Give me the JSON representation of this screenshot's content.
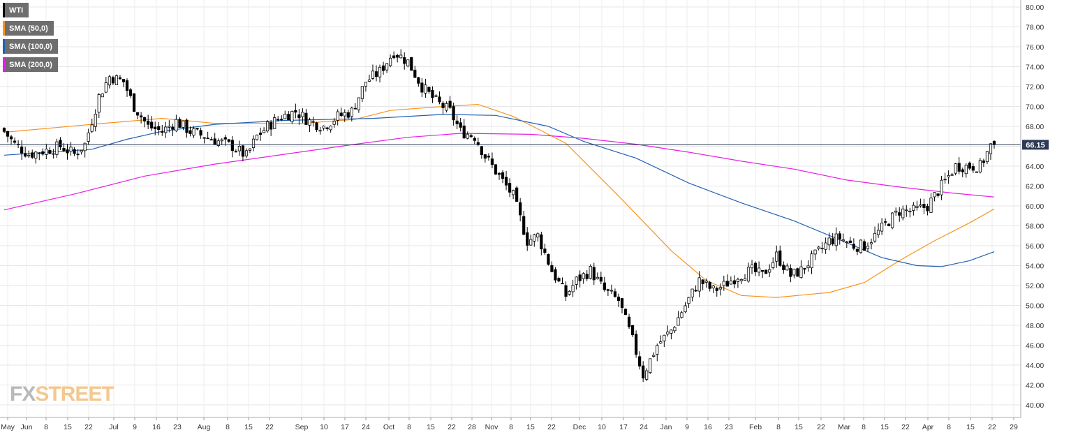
{
  "legend": [
    {
      "label": "WTI",
      "color": "#000000"
    },
    {
      "label": "SMA (50,0)",
      "color": "#f7931e"
    },
    {
      "label": "SMA (100,0)",
      "color": "#2261b3"
    },
    {
      "label": "SMA (200,0)",
      "color": "#e61ee6"
    }
  ],
  "brand": {
    "fx": "FX",
    "street": "STREET"
  },
  "chart_data": {
    "type": "candlestick",
    "title": "WTI",
    "xlabel": "",
    "ylabel": "",
    "ylim": [
      39,
      81
    ],
    "y_ticks": [
      "40.00",
      "42.00",
      "44.00",
      "46.00",
      "48.00",
      "50.00",
      "52.00",
      "54.00",
      "56.00",
      "58.00",
      "60.00",
      "62.00",
      "64.00",
      "66.00",
      "68.00",
      "70.00",
      "72.00",
      "74.00",
      "76.00",
      "78.00",
      "80.00"
    ],
    "x_ticks": [
      "May",
      "Jun",
      "8",
      "15",
      "22",
      "Jul",
      "9",
      "16",
      "23",
      "Aug",
      "8",
      "15",
      "22",
      "Sep",
      "10",
      "17",
      "24",
      "Oct",
      "8",
      "15",
      "22",
      "28",
      "Nov",
      "8",
      "15",
      "22",
      "Dec",
      "10",
      "17",
      "24",
      "Jan",
      "9",
      "16",
      "23",
      "Feb",
      "8",
      "15",
      "22",
      "Mar",
      "8",
      "15",
      "22",
      "Apr",
      "8",
      "15",
      "22",
      "29"
    ],
    "last_price": "66.15",
    "price_path": [
      [
        0,
        67.5
      ],
      [
        3,
        66.2
      ],
      [
        7,
        65.2
      ],
      [
        12,
        65.6
      ],
      [
        16,
        66.0
      ],
      [
        20,
        65.2
      ],
      [
        23,
        66.2
      ],
      [
        27,
        71.0
      ],
      [
        30,
        73.0
      ],
      [
        34,
        72.5
      ],
      [
        37,
        70.0
      ],
      [
        41,
        68.0
      ],
      [
        45,
        67.5
      ],
      [
        49,
        68.5
      ],
      [
        53,
        67.5
      ],
      [
        57,
        67.0
      ],
      [
        61,
        66.5
      ],
      [
        65,
        66.0
      ],
      [
        69,
        65.0
      ],
      [
        72,
        67.0
      ],
      [
        75,
        68.0
      ],
      [
        79,
        69.0
      ],
      [
        83,
        69.5
      ],
      [
        87,
        68.5
      ],
      [
        91,
        68.0
      ],
      [
        95,
        69.0
      ],
      [
        99,
        69.5
      ],
      [
        103,
        72.5
      ],
      [
        107,
        73.5
      ],
      [
        111,
        75.5
      ],
      [
        115,
        74.5
      ],
      [
        119,
        72.0
      ],
      [
        123,
        70.5
      ],
      [
        127,
        69.5
      ],
      [
        130,
        67.5
      ],
      [
        134,
        67.0
      ],
      [
        137,
        65.0
      ],
      [
        141,
        63.0
      ],
      [
        145,
        61.0
      ],
      [
        149,
        56.5
      ],
      [
        152,
        57.0
      ],
      [
        156,
        53.5
      ],
      [
        160,
        51.0
      ],
      [
        163,
        52.5
      ],
      [
        167,
        53.5
      ],
      [
        171,
        51.5
      ],
      [
        175,
        50.5
      ],
      [
        179,
        46.5
      ],
      [
        182,
        43.0
      ],
      [
        186,
        46.0
      ],
      [
        190,
        47.5
      ],
      [
        194,
        50.0
      ],
      [
        198,
        52.5
      ],
      [
        202,
        51.5
      ],
      [
        205,
        52.0
      ],
      [
        209,
        53.0
      ],
      [
        213,
        53.5
      ],
      [
        216,
        53.0
      ],
      [
        220,
        55.0
      ],
      [
        224,
        53.0
      ],
      [
        227,
        53.5
      ],
      [
        231,
        55.0
      ],
      [
        235,
        56.5
      ],
      [
        238,
        56.8
      ],
      [
        242,
        56.0
      ],
      [
        245,
        56.0
      ],
      [
        248,
        57.0
      ],
      [
        252,
        58.5
      ],
      [
        255,
        59.5
      ],
      [
        259,
        59.5
      ],
      [
        263,
        60.0
      ],
      [
        266,
        61.5
      ],
      [
        268,
        62.5
      ],
      [
        271,
        64.0
      ],
      [
        275,
        64.0
      ],
      [
        278,
        64.0
      ],
      [
        281,
        66.0
      ],
      [
        282,
        66.15
      ]
    ],
    "series": [
      {
        "name": "SMA (50,0)",
        "color": "#f7931e",
        "values": [
          [
            0,
            67.4
          ],
          [
            25,
            68.2
          ],
          [
            45,
            68.8
          ],
          [
            60,
            68.3
          ],
          [
            85,
            68.3
          ],
          [
            100,
            68.7
          ],
          [
            110,
            69.6
          ],
          [
            125,
            70.0
          ],
          [
            135,
            70.2
          ],
          [
            145,
            69.0
          ],
          [
            160,
            66.3
          ],
          [
            175,
            61.0
          ],
          [
            190,
            55.5
          ],
          [
            200,
            52.5
          ],
          [
            210,
            51.0
          ],
          [
            220,
            50.8
          ],
          [
            235,
            51.3
          ],
          [
            245,
            52.3
          ],
          [
            255,
            54.5
          ],
          [
            265,
            56.5
          ],
          [
            275,
            58.3
          ],
          [
            282,
            59.7
          ]
        ]
      },
      {
        "name": "SMA (100,0)",
        "color": "#2261b3",
        "values": [
          [
            0,
            65.1
          ],
          [
            25,
            65.7
          ],
          [
            35,
            66.7
          ],
          [
            45,
            67.5
          ],
          [
            60,
            68.2
          ],
          [
            80,
            68.6
          ],
          [
            105,
            68.8
          ],
          [
            125,
            69.2
          ],
          [
            140,
            69.1
          ],
          [
            155,
            68.0
          ],
          [
            165,
            66.5
          ],
          [
            180,
            64.8
          ],
          [
            195,
            62.3
          ],
          [
            210,
            60.3
          ],
          [
            225,
            58.5
          ],
          [
            240,
            56.3
          ],
          [
            250,
            54.8
          ],
          [
            260,
            54.0
          ],
          [
            267,
            53.9
          ],
          [
            275,
            54.5
          ],
          [
            282,
            55.4
          ]
        ]
      },
      {
        "name": "SMA (200,0)",
        "color": "#e61ee6",
        "values": [
          [
            0,
            59.6
          ],
          [
            20,
            61.2
          ],
          [
            40,
            63.0
          ],
          [
            60,
            64.2
          ],
          [
            80,
            65.2
          ],
          [
            100,
            66.2
          ],
          [
            115,
            66.9
          ],
          [
            130,
            67.3
          ],
          [
            150,
            67.2
          ],
          [
            165,
            66.8
          ],
          [
            180,
            66.2
          ],
          [
            195,
            65.4
          ],
          [
            210,
            64.5
          ],
          [
            225,
            63.7
          ],
          [
            240,
            62.6
          ],
          [
            255,
            61.9
          ],
          [
            270,
            61.3
          ],
          [
            282,
            60.9
          ]
        ]
      }
    ]
  }
}
